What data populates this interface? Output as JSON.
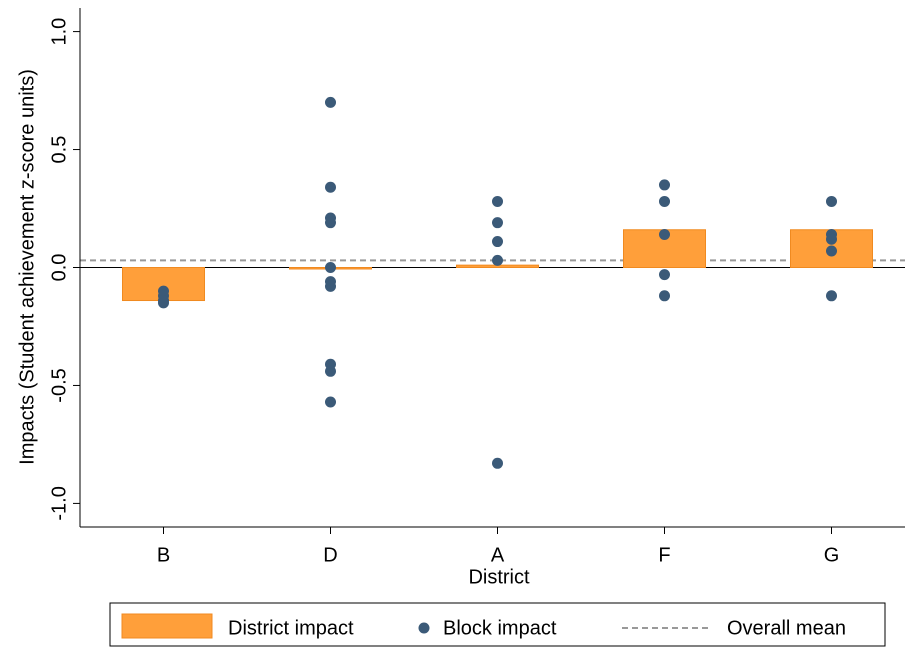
{
  "chart_data": {
    "type": "bar",
    "y_label": "Impacts (Student achievement z-score units)",
    "x_label": "District",
    "categories": [
      "B",
      "D",
      "A",
      "F",
      "G"
    ],
    "series": [
      {
        "name": "District impact",
        "color": "#ff9f3a",
        "values": [
          -0.14,
          -0.005,
          0.01,
          0.16,
          0.16
        ]
      },
      {
        "name": "Block impact",
        "color": "#3b5a78",
        "values": [
          [
            -0.1,
            -0.12,
            -0.14,
            -0.15
          ],
          [
            0.7,
            0.34,
            0.21,
            0.19,
            0.0,
            -0.06,
            -0.08,
            -0.41,
            -0.44,
            -0.57
          ],
          [
            0.28,
            0.19,
            0.11,
            0.03,
            -0.83
          ],
          [
            0.35,
            0.28,
            0.14,
            -0.03,
            -0.12
          ],
          [
            0.28,
            0.14,
            0.12,
            0.07,
            -0.12
          ]
        ]
      }
    ],
    "overall_mean": {
      "name": "Overall mean",
      "value": 0.03,
      "color": "#999999"
    },
    "ylim": [
      -1.1,
      1.1
    ],
    "yticks": [
      {
        "value": -1,
        "label": "-1.0"
      },
      -0.5,
      {
        "value": 0,
        "label": "0.0"
      },
      0.5,
      {
        "value": 1,
        "label": "1.0"
      }
    ]
  }
}
